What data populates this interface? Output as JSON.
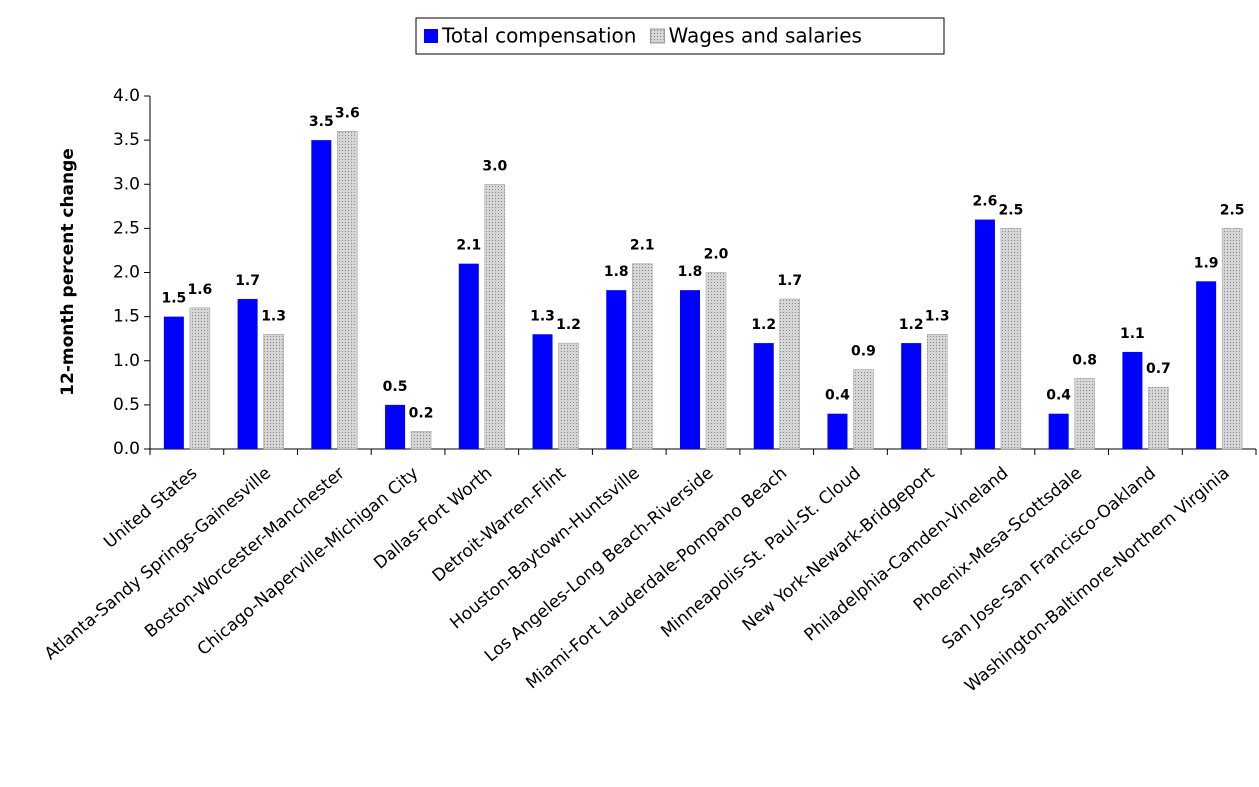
{
  "chart_data": {
    "type": "bar",
    "ylabel": "12-month percent change",
    "categories": [
      "United States",
      "Atlanta-Sandy Springs-Gainesville",
      "Boston-Worcester-Manchester",
      "Chicago-Naperville-Michigan City",
      "Dallas-Fort Worth",
      "Detroit-Warren-Flint",
      "Houston-Baytown-Huntsville",
      "Los Angeles-Long Beach-Riverside",
      "Miami-Fort Lauderdale-Pompano Beach",
      "Minneapolis-St. Paul-St. Cloud",
      "New York-Newark-Bridgeport",
      "Philadelphia-Camden-Vineland",
      "Phoenix-Mesa-Scottsdale",
      "San Jose-San Francisco-Oakland",
      "Washington-Baltimore-Northern Virginia"
    ],
    "series": [
      {
        "name": "Total compensation",
        "color": "#0000ff",
        "values": [
          1.5,
          1.7,
          3.5,
          0.5,
          2.1,
          1.3,
          1.8,
          1.8,
          1.2,
          0.4,
          1.2,
          2.6,
          0.4,
          1.1,
          1.9
        ],
        "value_labels": [
          "1.5",
          "1.7",
          "3.5",
          "0.5",
          "2.1",
          "1.3",
          "1.8",
          "1.8",
          "1.2",
          "0.4",
          "1.2",
          "2.6",
          "0.4",
          "1.1",
          "1.9"
        ]
      },
      {
        "name": "Wages and salaries",
        "color": "#bdbdbd",
        "values": [
          1.6,
          1.3,
          3.6,
          0.2,
          3.0,
          1.2,
          2.1,
          2.0,
          1.7,
          0.9,
          1.3,
          2.5,
          0.8,
          0.7,
          2.5
        ],
        "value_labels": [
          "1.6",
          "1.3",
          "3.6",
          "0.2",
          "3.0",
          "1.2",
          "2.1",
          "2.0",
          "1.7",
          "0.9",
          "1.3",
          "2.5",
          "0.8",
          "0.7",
          "2.5"
        ]
      }
    ],
    "ylim": [
      0,
      4
    ],
    "yticks": [
      {
        "value": 0,
        "label": "0.0"
      },
      0.5,
      {
        "value": 1,
        "label": "1.0"
      },
      1.5,
      {
        "value": 2,
        "label": "2.0"
      },
      2.5,
      {
        "value": 3,
        "label": "3.0"
      },
      3.5,
      {
        "value": 4,
        "label": "4.0"
      }
    ],
    "legend": "top"
  }
}
